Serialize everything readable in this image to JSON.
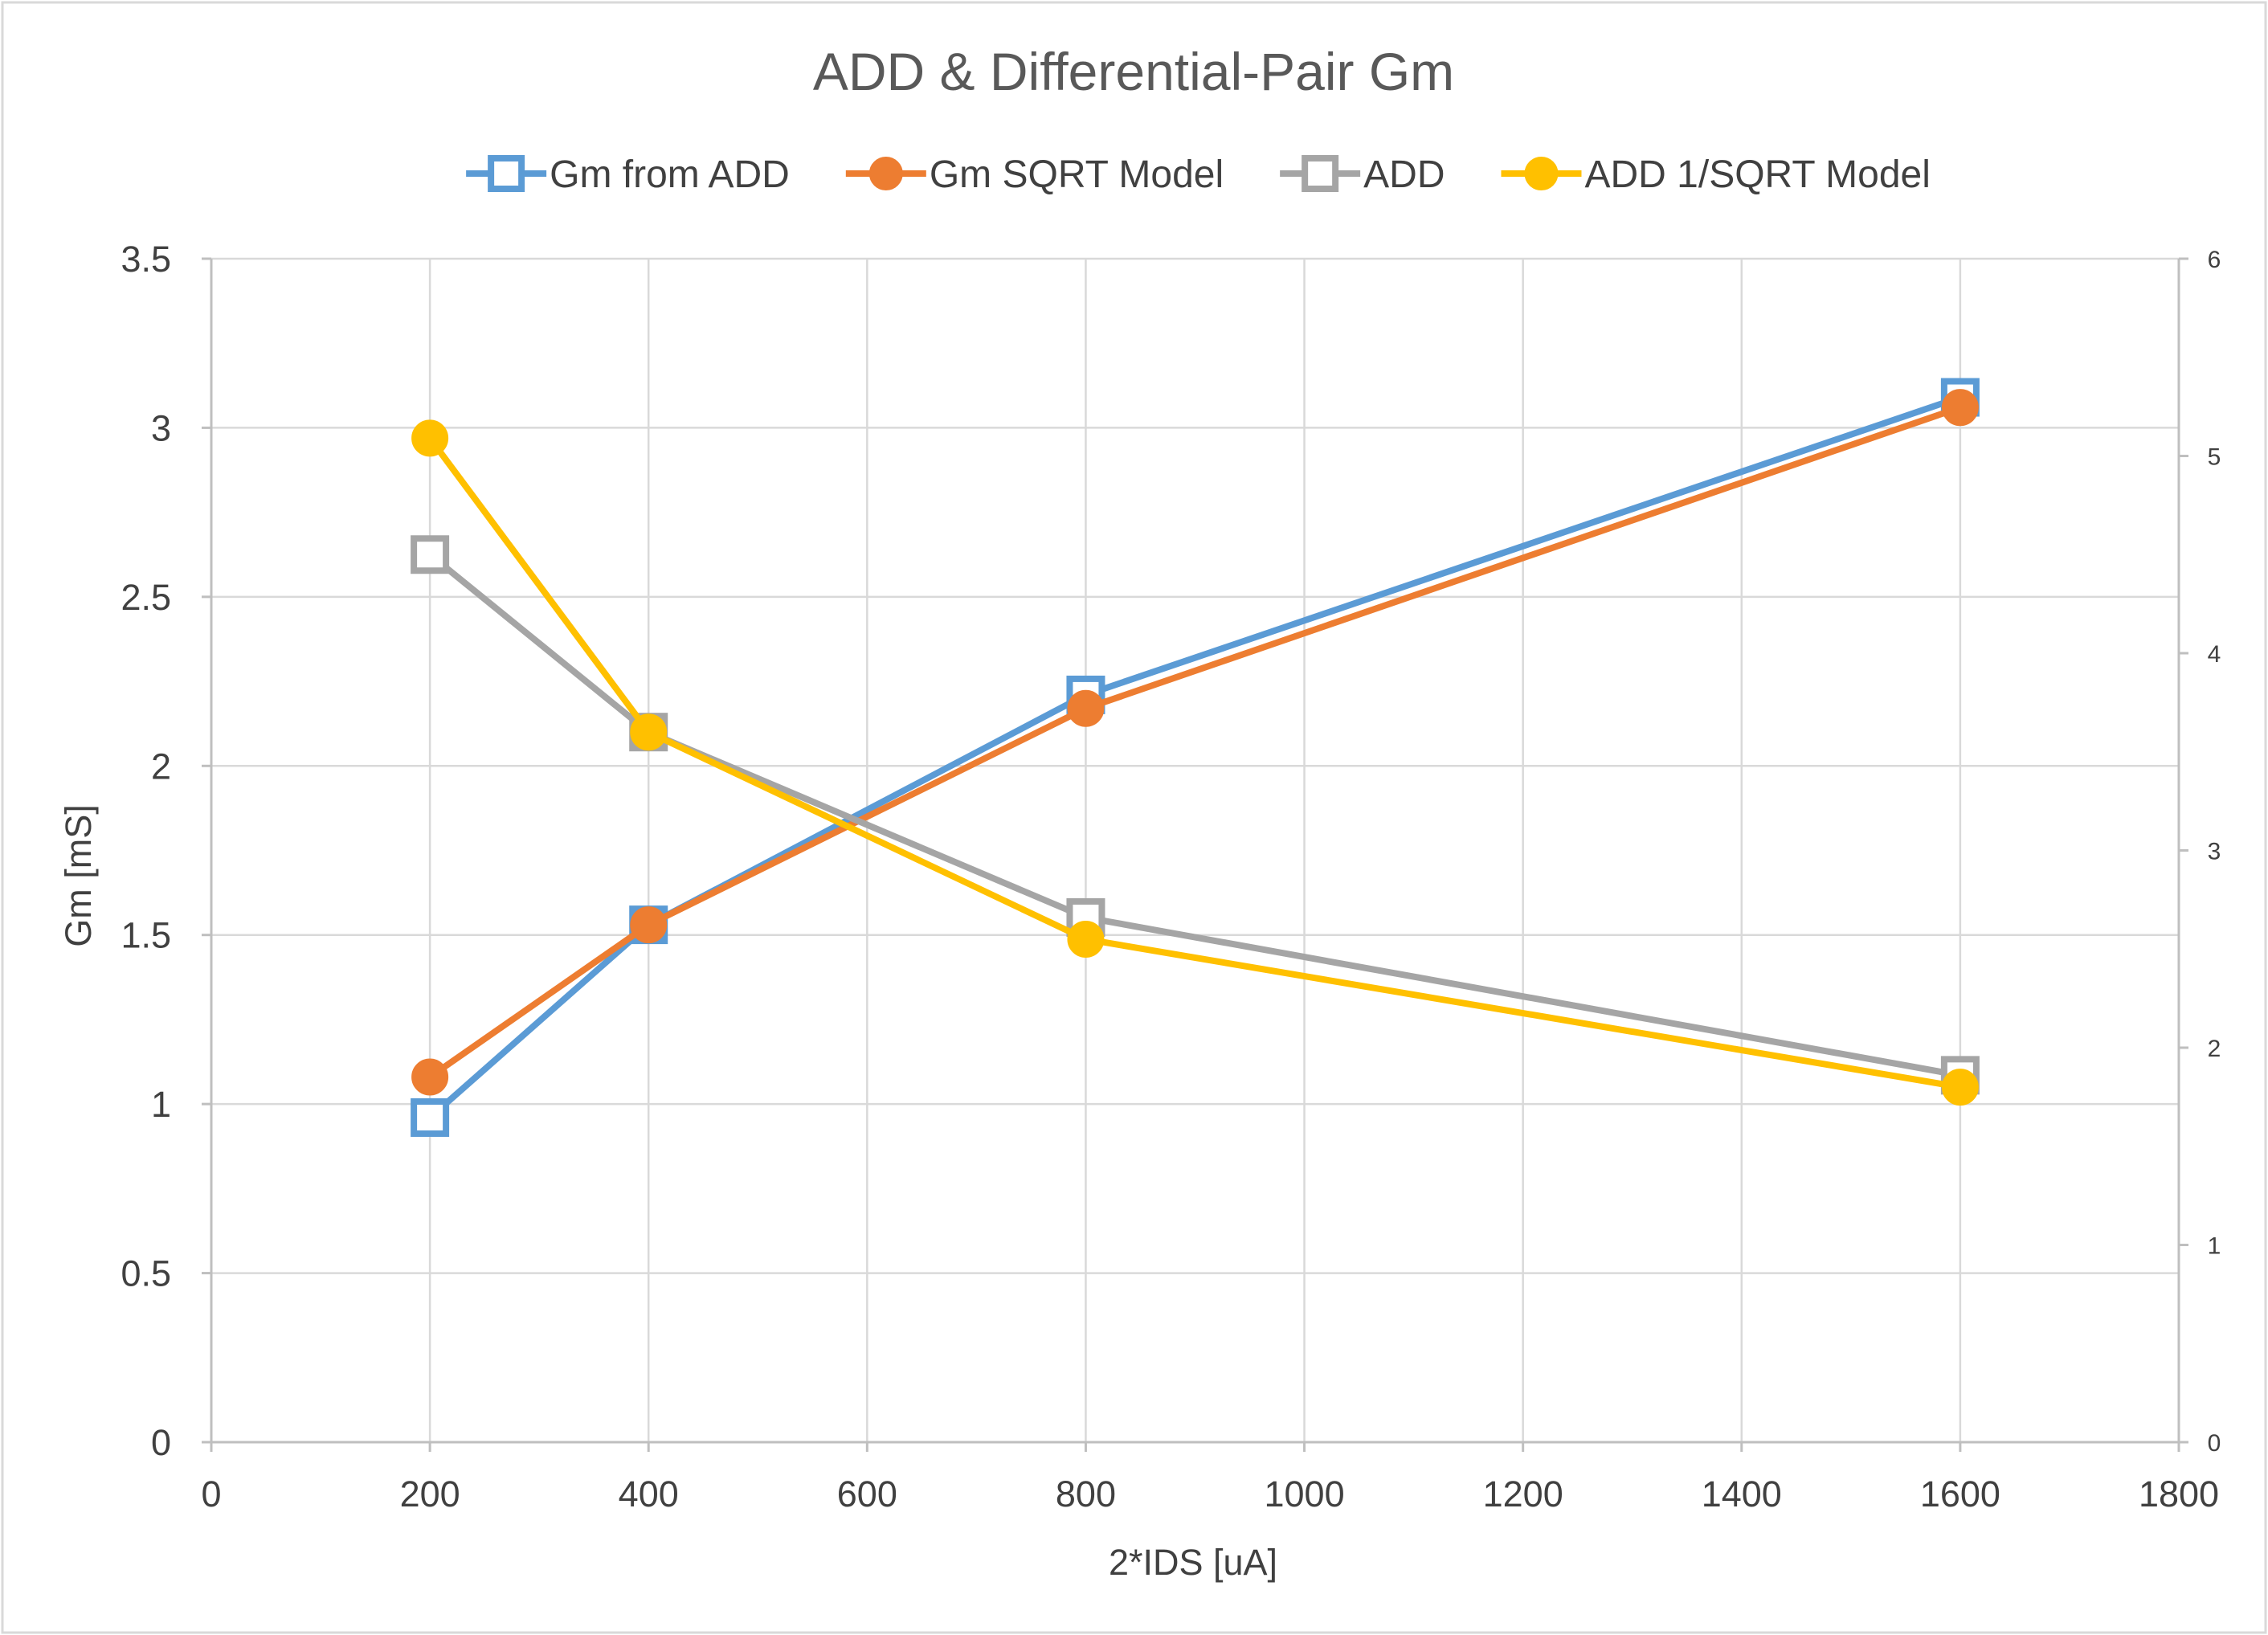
{
  "chart_data": {
    "type": "line",
    "title": "ADD & Differential-Pair Gm",
    "xlabel": "2*IDS [uA]",
    "ylabel": "Gm [mS]",
    "y2label": "",
    "xlim": [
      0,
      1800
    ],
    "ylim": [
      0,
      3.5
    ],
    "y2lim": [
      0,
      6
    ],
    "x_ticks": [
      0,
      200,
      400,
      600,
      800,
      1000,
      1200,
      1400,
      1600,
      1800
    ],
    "y_ticks": [
      0,
      0.5,
      1,
      1.5,
      2,
      2.5,
      3,
      3.5
    ],
    "y2_ticks": [
      0,
      1,
      2,
      3,
      4,
      5,
      6
    ],
    "grid": true,
    "legend_position": "top",
    "series": [
      {
        "name": "Gm from ADD",
        "axis": "left",
        "color": "#5B9BD5",
        "marker": "square-open",
        "x": [
          200,
          400,
          800,
          1600
        ],
        "values": [
          0.96,
          1.53,
          2.21,
          3.09
        ]
      },
      {
        "name": "Gm SQRT Model",
        "axis": "left",
        "color": "#ED7D31",
        "marker": "circle",
        "x": [
          200,
          400,
          800,
          1600
        ],
        "values": [
          1.08,
          1.53,
          2.17,
          3.06
        ]
      },
      {
        "name": "ADD",
        "axis": "right",
        "color": "#A5A5A5",
        "marker": "square-open",
        "x": [
          200,
          400,
          800,
          1600
        ],
        "values": [
          4.5,
          3.6,
          2.66,
          1.86
        ]
      },
      {
        "name": "ADD 1/SQRT Model",
        "axis": "right",
        "color": "#FFC000",
        "marker": "circle",
        "x": [
          200,
          400,
          800,
          1600
        ],
        "values": [
          5.09,
          3.6,
          2.55,
          1.8
        ]
      }
    ]
  }
}
